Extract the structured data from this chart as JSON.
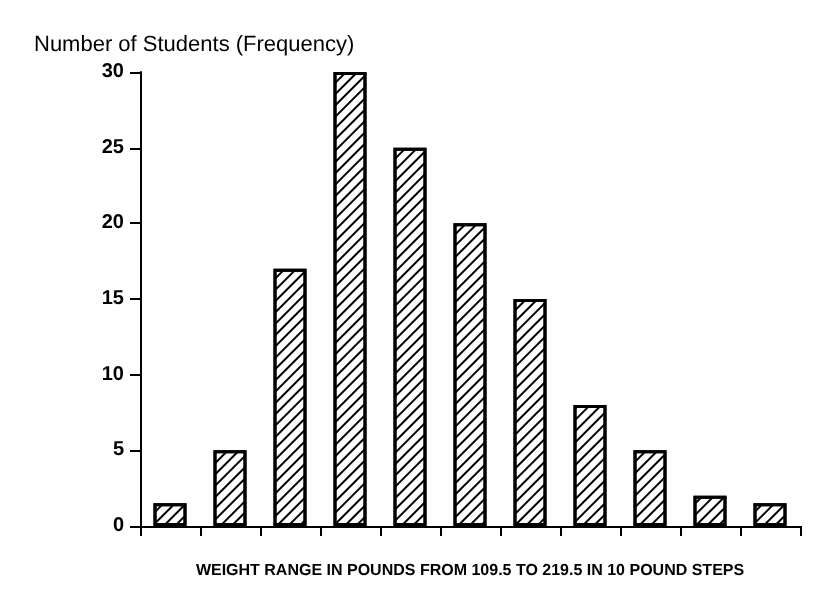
{
  "chart_data": {
    "type": "bar",
    "ylabel": "Number of Students (Frequency)",
    "xlabel": "WEIGHT RANGE IN POUNDS FROM 109.5 TO 219.5 IN 10 POUND STEPS",
    "categories": [
      null,
      null,
      null,
      null,
      null,
      null,
      null,
      null,
      null,
      null,
      null
    ],
    "values": [
      1.5,
      5,
      17,
      30,
      25,
      20,
      15,
      8,
      5,
      2,
      1.5
    ],
    "color": "#000000",
    "ylim": [
      0,
      30
    ],
    "yticks": [
      0,
      5,
      10,
      15,
      20,
      25,
      30
    ],
    "grid": false
  }
}
